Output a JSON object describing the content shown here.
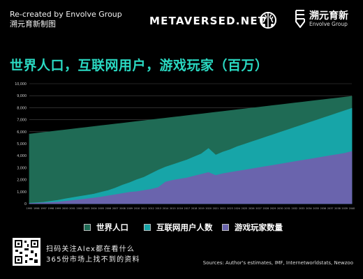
{
  "header": {
    "recreated_line1": "Re-created by Envolve Group",
    "recreated_line2": "溯元育新制图",
    "brand": "METAVERSED.NET",
    "envolve_cn": "溯元育新",
    "envolve_en": "Envolve Group"
  },
  "colors": {
    "background": "#000000",
    "title": "#2ad9c2",
    "world_population": "#1f6b55",
    "internet_users": "#17a5a8",
    "gamers": "#6a64ad"
  },
  "chart_data": {
    "type": "area",
    "title": "世界人口，互联网用户，游戏玩家（百万）",
    "ylim": [
      0,
      10000
    ],
    "yticks": [
      "0",
      "1,000",
      "2,000",
      "3,000",
      "4,000",
      "5,000",
      "6,000",
      "7,000",
      "8,000",
      "9,000",
      "10,000"
    ],
    "x": [
      1995,
      1996,
      1997,
      1998,
      1999,
      2000,
      2001,
      2002,
      2003,
      2004,
      2005,
      2006,
      2007,
      2008,
      2009,
      2010,
      2011,
      2012,
      2013,
      2014,
      2015,
      2016,
      2017,
      2018,
      2019,
      2020,
      2021,
      2022,
      2023,
      2024,
      2025,
      2026,
      2027,
      2028,
      2029,
      2030,
      2031,
      2032,
      2033,
      2034,
      2035,
      2036,
      2037,
      2038,
      2039,
      2040
    ],
    "xlabels": [
      "1995",
      "1996",
      "1997",
      "1998",
      "1999",
      "2000",
      "2001",
      "2002",
      "2003",
      "2004",
      "2005",
      "2006",
      "2007",
      "2008",
      "2009",
      "2010",
      "2011",
      "2012",
      "2013",
      "2014",
      "2015",
      "2016",
      "2017",
      "2018",
      "2019",
      "2020",
      "2021",
      "2022",
      "2023",
      "2024",
      "2025",
      "2026",
      "2027",
      "2028",
      "2029",
      "2030",
      "2031",
      "2032",
      "2033",
      "2034",
      "2035",
      "2036",
      "2037",
      "2038",
      "2039",
      "2040"
    ],
    "grid": true,
    "legend_position": "bottom",
    "series": [
      {
        "name": "世界人口",
        "color": "#1f6b55",
        "values": [
          5800,
          5870,
          5940,
          6010,
          6080,
          6150,
          6220,
          6290,
          6360,
          6430,
          6500,
          6570,
          6640,
          6710,
          6780,
          6850,
          6920,
          6990,
          7060,
          7130,
          7200,
          7270,
          7340,
          7410,
          7480,
          7550,
          7620,
          7690,
          7760,
          7830,
          7900,
          7970,
          8040,
          8110,
          8180,
          8250,
          8320,
          8390,
          8460,
          8530,
          8600,
          8670,
          8740,
          8810,
          8880,
          8950
        ]
      },
      {
        "name": "互联网用户人数",
        "color": "#17a5a8",
        "values": [
          40,
          80,
          120,
          200,
          280,
          400,
          500,
          600,
          700,
          800,
          950,
          1100,
          1300,
          1550,
          1750,
          2000,
          2200,
          2500,
          2800,
          3050,
          3250,
          3450,
          3650,
          3900,
          4150,
          4600,
          4050,
          4300,
          4500,
          4750,
          4950,
          5150,
          5350,
          5550,
          5750,
          5950,
          6150,
          6350,
          6550,
          6750,
          6950,
          7150,
          7350,
          7550,
          7750,
          7950
        ]
      },
      {
        "name": "游戏玩家数量",
        "color": "#6a64ad",
        "values": [
          20,
          40,
          70,
          100,
          140,
          200,
          260,
          330,
          400,
          470,
          550,
          650,
          750,
          850,
          950,
          1000,
          1100,
          1200,
          1350,
          1800,
          1950,
          2050,
          2150,
          2300,
          2450,
          2600,
          2350,
          2500,
          2600,
          2700,
          2800,
          2900,
          3000,
          3100,
          3200,
          3300,
          3400,
          3500,
          3600,
          3700,
          3800,
          3900,
          4000,
          4100,
          4200,
          4350
        ]
      }
    ]
  },
  "footer": {
    "promo_line1": "扫码关注Alex都在看什么",
    "promo_line2": "365份市场上找不到的资料",
    "sources": "Sources: Author's estimates, IMF, Internetworldstats, Newzoo"
  }
}
